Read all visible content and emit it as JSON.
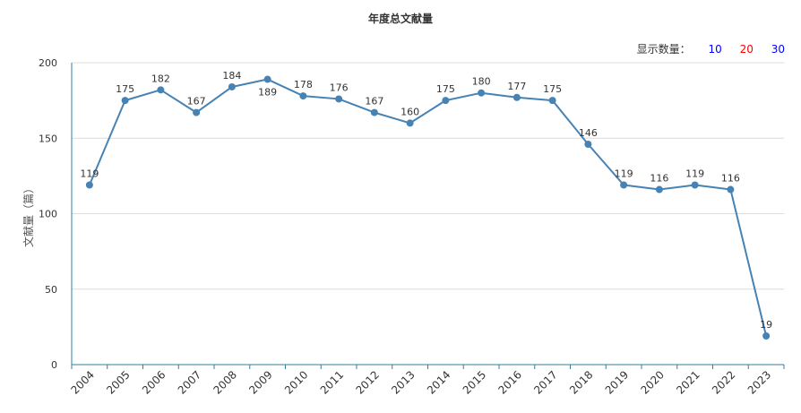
{
  "chart_data": {
    "type": "line",
    "title": "年度总文献量",
    "xlabel": "",
    "ylabel": "文献量（篇）",
    "categories": [
      "2004",
      "2005",
      "2006",
      "2007",
      "2008",
      "2009",
      "2010",
      "2011",
      "2012",
      "2013",
      "2014",
      "2015",
      "2016",
      "2017",
      "2018",
      "2019",
      "2020",
      "2021",
      "2022",
      "2023"
    ],
    "values": [
      119,
      175,
      182,
      167,
      184,
      189,
      178,
      176,
      167,
      160,
      175,
      180,
      177,
      175,
      146,
      119,
      116,
      119,
      116,
      19
    ],
    "ylim": [
      0,
      200
    ],
    "yticks": [
      0,
      50,
      100,
      150,
      200
    ],
    "grid": true,
    "line_color": "#4682b4"
  },
  "display_control": {
    "label": "显示数量：",
    "options": [
      {
        "label": "10",
        "color": "#0000ff"
      },
      {
        "label": "20",
        "color": "#ff0000"
      },
      {
        "label": "30",
        "color": "#0000ff"
      }
    ]
  }
}
